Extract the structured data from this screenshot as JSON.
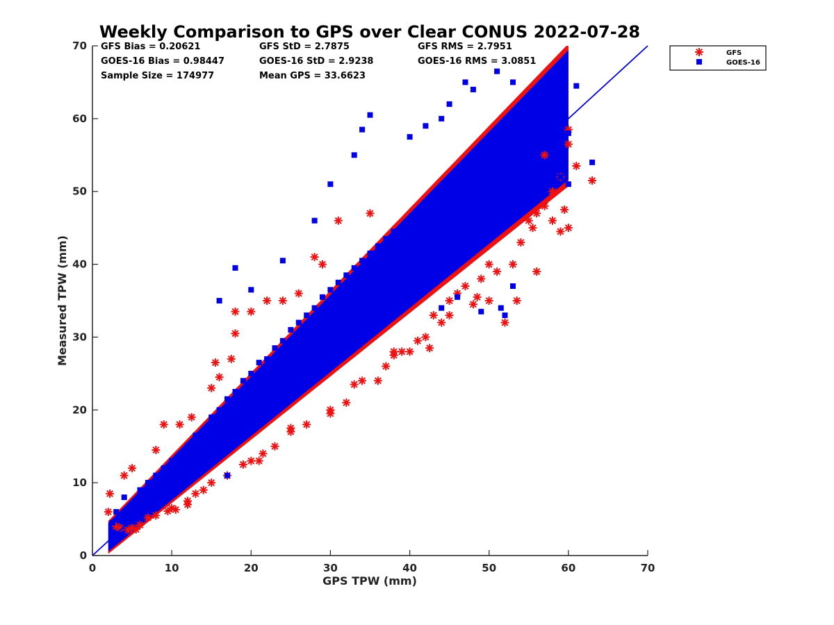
{
  "chart_data": {
    "type": "scatter",
    "title": "Weekly Comparison to GPS over Clear CONUS 2022-07-28",
    "xlabel": "GPS TPW (mm)",
    "ylabel": "Measured TPW (mm)",
    "xlim": [
      0,
      70
    ],
    "ylim": [
      0,
      70
    ],
    "xticks": [
      "0",
      "10",
      "20",
      "30",
      "40",
      "50",
      "60",
      "70"
    ],
    "yticks": [
      "0",
      "10",
      "20",
      "30",
      "40",
      "50",
      "60",
      "70"
    ],
    "grid": false,
    "legend_position": "outside-top-right",
    "reference_line": {
      "name": "1:1 line",
      "x": [
        0,
        70
      ],
      "y": [
        0,
        70
      ],
      "color": "#0000e0"
    },
    "stats": {
      "gfs_bias": "GFS Bias = 0.20621",
      "gfs_std": "GFS StD = 2.7875",
      "gfs_rms": "GFS RMS = 2.7951",
      "goes_bias": "GOES-16 Bias = 0.98447",
      "goes_std": "GOES-16 StD = 2.9238",
      "goes_rms": "GOES-16 RMS = 3.0851",
      "sample_size": "Sample Size = 174977",
      "mean_gps": "Mean GPS = 33.6623"
    },
    "series": [
      {
        "name": "GFS",
        "marker": "asterisk",
        "color": "#ee1111",
        "points": [
          [
            2,
            6
          ],
          [
            2.2,
            8.5
          ],
          [
            3,
            4
          ],
          [
            3.5,
            3.8
          ],
          [
            4,
            11
          ],
          [
            4.5,
            3.5
          ],
          [
            5,
            12
          ],
          [
            5.5,
            3.6
          ],
          [
            6,
            4.2
          ],
          [
            7,
            5.2
          ],
          [
            8,
            14.5
          ],
          [
            9,
            18
          ],
          [
            9.5,
            6.1
          ],
          [
            10,
            6.5
          ],
          [
            10.5,
            6.3
          ],
          [
            11,
            18
          ],
          [
            12,
            7
          ],
          [
            12.5,
            19
          ],
          [
            13,
            8.5
          ],
          [
            14,
            9
          ],
          [
            15,
            23
          ],
          [
            15.5,
            26.5
          ],
          [
            16,
            24.5
          ],
          [
            17,
            11
          ],
          [
            17.5,
            27
          ],
          [
            18,
            33.5
          ],
          [
            18,
            30.5
          ],
          [
            19,
            12.5
          ],
          [
            20,
            33.5
          ],
          [
            21,
            13
          ],
          [
            21.5,
            14
          ],
          [
            22,
            35
          ],
          [
            23,
            15
          ],
          [
            24,
            35
          ],
          [
            25,
            17
          ],
          [
            26,
            36
          ],
          [
            27,
            18
          ],
          [
            28,
            41
          ],
          [
            29,
            40
          ],
          [
            30,
            19.5
          ],
          [
            31,
            46
          ],
          [
            32,
            21
          ],
          [
            33,
            23.5
          ],
          [
            34,
            24
          ],
          [
            35,
            47
          ],
          [
            36,
            24
          ],
          [
            37,
            26
          ],
          [
            38,
            27.5
          ],
          [
            39,
            28
          ],
          [
            40,
            28
          ],
          [
            41,
            29.5
          ],
          [
            42,
            30
          ],
          [
            42.5,
            28.5
          ],
          [
            43,
            33
          ],
          [
            44,
            32
          ],
          [
            45,
            35
          ],
          [
            46,
            36
          ],
          [
            47,
            37
          ],
          [
            48,
            34.5
          ],
          [
            48.5,
            35.5
          ],
          [
            49,
            38
          ],
          [
            50,
            35
          ],
          [
            51,
            39
          ],
          [
            52,
            32
          ],
          [
            53,
            40
          ],
          [
            53.5,
            35
          ],
          [
            54,
            43
          ],
          [
            55,
            46
          ],
          [
            55.5,
            45
          ],
          [
            56,
            39
          ],
          [
            57,
            48
          ],
          [
            58,
            46
          ],
          [
            59,
            44.5
          ],
          [
            59.5,
            47.5
          ],
          [
            60,
            58.5
          ],
          [
            60,
            56.5
          ],
          [
            60,
            45
          ],
          [
            61,
            53.5
          ],
          [
            63,
            51.5
          ],
          [
            50,
            40
          ],
          [
            45,
            33
          ],
          [
            38,
            28
          ],
          [
            30,
            20
          ],
          [
            25,
            17.5
          ],
          [
            20,
            13
          ],
          [
            15,
            10
          ],
          [
            12,
            7.5
          ],
          [
            8,
            5.5
          ],
          [
            5,
            3.8
          ],
          [
            56,
            47
          ],
          [
            58,
            50
          ],
          [
            59,
            52
          ],
          [
            57,
            55
          ]
        ]
      },
      {
        "name": "GOES-16",
        "marker": "square",
        "color": "#0000e6",
        "points": [
          [
            2.5,
            4.5
          ],
          [
            3,
            6
          ],
          [
            4,
            8
          ],
          [
            5,
            7
          ],
          [
            6,
            9
          ],
          [
            7,
            10
          ],
          [
            8,
            11
          ],
          [
            9,
            12
          ],
          [
            10,
            13
          ],
          [
            11,
            13.5
          ],
          [
            12,
            15
          ],
          [
            13,
            16.5
          ],
          [
            14,
            17
          ],
          [
            15,
            19
          ],
          [
            16,
            20
          ],
          [
            17,
            21.5
          ],
          [
            18,
            22.5
          ],
          [
            19,
            24
          ],
          [
            20,
            25
          ],
          [
            21,
            26.5
          ],
          [
            22,
            27
          ],
          [
            23,
            28.5
          ],
          [
            24,
            29.5
          ],
          [
            25,
            31
          ],
          [
            26,
            32
          ],
          [
            27,
            33
          ],
          [
            28,
            34
          ],
          [
            29,
            35.5
          ],
          [
            30,
            36.5
          ],
          [
            31,
            37.5
          ],
          [
            32,
            38.5
          ],
          [
            33,
            39.5
          ],
          [
            34,
            40.5
          ],
          [
            35,
            41.5
          ],
          [
            36,
            42.5
          ],
          [
            37,
            43.5
          ],
          [
            38,
            44.5
          ],
          [
            39,
            45
          ],
          [
            40,
            46
          ],
          [
            41,
            47
          ],
          [
            42,
            48
          ],
          [
            43,
            49
          ],
          [
            44,
            50
          ],
          [
            45,
            51
          ],
          [
            46,
            52
          ],
          [
            47,
            53
          ],
          [
            48,
            54
          ],
          [
            49,
            55
          ],
          [
            50,
            56
          ],
          [
            51,
            57
          ],
          [
            52,
            58
          ],
          [
            53,
            58.5
          ],
          [
            54,
            57
          ],
          [
            55,
            56
          ],
          [
            56,
            55
          ],
          [
            57,
            54
          ],
          [
            58,
            53
          ],
          [
            59,
            52
          ],
          [
            60,
            51
          ],
          [
            18,
            39.5
          ],
          [
            16,
            35
          ],
          [
            20,
            36.5
          ],
          [
            24,
            40.5
          ],
          [
            28,
            46
          ],
          [
            30,
            51
          ],
          [
            33,
            55
          ],
          [
            34,
            58.5
          ],
          [
            35,
            60.5
          ],
          [
            40,
            57.5
          ],
          [
            42,
            59
          ],
          [
            44,
            60
          ],
          [
            45,
            62
          ],
          [
            47,
            65
          ],
          [
            48,
            64
          ],
          [
            51,
            66.5
          ],
          [
            53,
            65
          ],
          [
            56,
            63
          ],
          [
            58,
            61
          ],
          [
            60,
            58
          ],
          [
            61,
            64.5
          ],
          [
            63,
            54
          ],
          [
            52,
            33
          ],
          [
            51.5,
            34
          ],
          [
            46,
            35.5
          ],
          [
            44,
            34
          ],
          [
            49,
            33.5
          ],
          [
            53,
            37
          ],
          [
            22,
            22
          ],
          [
            26,
            26
          ],
          [
            30,
            30
          ],
          [
            34,
            34
          ],
          [
            38,
            38
          ],
          [
            42,
            42
          ],
          [
            46,
            46
          ],
          [
            50,
            50
          ],
          [
            54,
            54
          ],
          [
            14,
            14
          ],
          [
            10,
            10
          ],
          [
            6,
            6
          ],
          [
            17,
            11
          ],
          [
            27,
            24
          ],
          [
            37,
            33
          ],
          [
            47,
            43
          ],
          [
            19,
            17
          ],
          [
            29,
            27
          ]
        ]
      }
    ]
  }
}
